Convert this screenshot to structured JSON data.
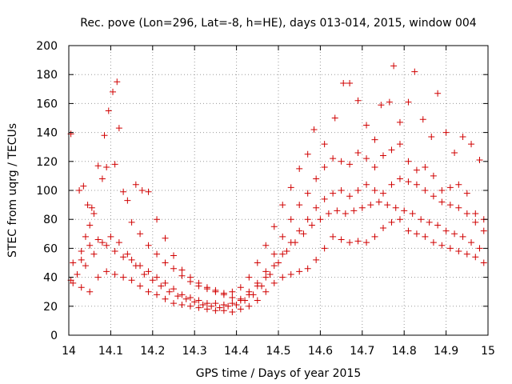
{
  "chart_data": {
    "type": "scatter",
    "title": "Rec. pove (Lon=296, Lat=-8, h=HE), days 013-014, 2015, window 004",
    "xlabel": "GPS time / Days of year 2015",
    "ylabel": "STEC from uqrg / TECUs",
    "xlim": [
      14.0,
      15.0
    ],
    "ylim": [
      0,
      200
    ],
    "xticks": [
      14.0,
      14.1,
      14.2,
      14.3,
      14.4,
      14.5,
      14.6,
      14.7,
      14.8,
      14.9,
      15.0
    ],
    "xtick_labels": [
      "14",
      "14.1",
      "14.2",
      "14.3",
      "14.4",
      "14.5",
      "14.6",
      "14.7",
      "14.8",
      "14.9",
      "15"
    ],
    "yticks": [
      0,
      20,
      40,
      60,
      80,
      100,
      120,
      140,
      160,
      180,
      200
    ],
    "marker": "+",
    "color": "#d00000",
    "grid": true,
    "series": [
      {
        "points": [
          [
            14.005,
            139
          ],
          [
            14.025,
            100
          ],
          [
            14.035,
            103
          ],
          [
            14.045,
            90
          ],
          [
            14.055,
            88
          ],
          [
            14.07,
            117
          ],
          [
            14.085,
            138
          ],
          [
            14.09,
            116
          ],
          [
            14.11,
            118
          ],
          [
            14.13,
            99
          ],
          [
            14.15,
            78
          ],
          [
            14.17,
            70
          ],
          [
            14.19,
            62
          ],
          [
            14.21,
            56
          ],
          [
            14.23,
            50
          ],
          [
            14.25,
            46
          ],
          [
            14.27,
            41
          ],
          [
            14.29,
            37
          ],
          [
            14.31,
            34
          ],
          [
            14.33,
            32
          ],
          [
            14.35,
            30
          ],
          [
            14.37,
            29
          ],
          [
            14.39,
            30
          ],
          [
            14.41,
            33
          ],
          [
            14.43,
            40
          ],
          [
            14.45,
            50
          ],
          [
            14.47,
            62
          ],
          [
            14.49,
            75
          ],
          [
            14.51,
            90
          ],
          [
            14.53,
            102
          ],
          [
            14.55,
            115
          ],
          [
            14.57,
            125
          ],
          [
            14.585,
            142
          ],
          [
            14.61,
            132
          ],
          [
            14.635,
            150
          ],
          [
            14.655,
            174
          ],
          [
            14.67,
            174
          ],
          [
            14.69,
            162
          ],
          [
            14.71,
            145
          ],
          [
            14.73,
            135
          ],
          [
            14.745,
            159
          ],
          [
            14.765,
            161
          ],
          [
            14.775,
            186
          ],
          [
            14.79,
            147
          ],
          [
            14.81,
            161
          ],
          [
            14.825,
            182
          ],
          [
            14.845,
            149
          ],
          [
            14.865,
            137
          ],
          [
            14.88,
            167
          ],
          [
            14.9,
            140
          ],
          [
            14.92,
            126
          ],
          [
            14.94,
            137
          ],
          [
            14.96,
            132
          ],
          [
            14.98,
            121
          ]
        ]
      },
      {
        "points": [
          [
            14.03,
            52
          ],
          [
            14.04,
            68
          ],
          [
            14.05,
            76
          ],
          [
            14.06,
            84
          ],
          [
            14.08,
            108
          ],
          [
            14.095,
            155
          ],
          [
            14.105,
            168
          ],
          [
            14.115,
            175
          ],
          [
            14.12,
            143
          ],
          [
            14.14,
            93
          ],
          [
            14.16,
            104
          ],
          [
            14.175,
            100
          ],
          [
            14.19,
            99
          ],
          [
            14.21,
            80
          ],
          [
            14.23,
            67
          ],
          [
            14.25,
            55
          ],
          [
            14.27,
            45
          ],
          [
            14.29,
            40
          ],
          [
            14.31,
            36
          ],
          [
            14.33,
            33
          ],
          [
            14.35,
            31
          ],
          [
            14.37,
            28
          ],
          [
            14.39,
            26
          ],
          [
            14.41,
            25
          ],
          [
            14.43,
            30
          ],
          [
            14.45,
            36
          ],
          [
            14.47,
            44
          ],
          [
            14.49,
            56
          ],
          [
            14.51,
            68
          ],
          [
            14.53,
            80
          ],
          [
            14.55,
            90
          ],
          [
            14.57,
            98
          ],
          [
            14.59,
            108
          ],
          [
            14.61,
            116
          ],
          [
            14.63,
            122
          ],
          [
            14.65,
            120
          ],
          [
            14.67,
            118
          ],
          [
            14.69,
            126
          ],
          [
            14.71,
            122
          ],
          [
            14.73,
            116
          ],
          [
            14.75,
            124
          ],
          [
            14.77,
            128
          ],
          [
            14.79,
            132
          ],
          [
            14.81,
            120
          ],
          [
            14.83,
            114
          ],
          [
            14.85,
            116
          ],
          [
            14.87,
            110
          ],
          [
            14.89,
            100
          ],
          [
            14.91,
            102
          ],
          [
            14.93,
            104
          ],
          [
            14.95,
            98
          ],
          [
            14.97,
            84
          ],
          [
            14.99,
            80
          ]
        ]
      },
      {
        "points": [
          [
            14.01,
            50
          ],
          [
            14.03,
            58
          ],
          [
            14.05,
            62
          ],
          [
            14.07,
            66
          ],
          [
            14.09,
            62
          ],
          [
            14.11,
            58
          ],
          [
            14.13,
            54
          ],
          [
            14.15,
            52
          ],
          [
            14.17,
            48
          ],
          [
            14.19,
            44
          ],
          [
            14.21,
            40
          ],
          [
            14.23,
            36
          ],
          [
            14.25,
            32
          ],
          [
            14.27,
            28
          ],
          [
            14.29,
            26
          ],
          [
            14.31,
            24
          ],
          [
            14.33,
            22
          ],
          [
            14.35,
            22
          ],
          [
            14.37,
            21
          ],
          [
            14.39,
            22
          ],
          [
            14.41,
            24
          ],
          [
            14.43,
            28
          ],
          [
            14.45,
            34
          ],
          [
            14.47,
            40
          ],
          [
            14.49,
            48
          ],
          [
            14.51,
            56
          ],
          [
            14.53,
            64
          ],
          [
            14.55,
            72
          ],
          [
            14.57,
            80
          ],
          [
            14.59,
            88
          ],
          [
            14.61,
            94
          ],
          [
            14.63,
            98
          ],
          [
            14.65,
            100
          ],
          [
            14.67,
            96
          ],
          [
            14.69,
            100
          ],
          [
            14.71,
            104
          ],
          [
            14.73,
            100
          ],
          [
            14.75,
            98
          ],
          [
            14.77,
            104
          ],
          [
            14.79,
            108
          ],
          [
            14.81,
            106
          ],
          [
            14.83,
            104
          ],
          [
            14.85,
            100
          ],
          [
            14.87,
            96
          ],
          [
            14.89,
            92
          ],
          [
            14.91,
            90
          ],
          [
            14.93,
            88
          ],
          [
            14.95,
            84
          ],
          [
            14.97,
            78
          ],
          [
            14.99,
            72
          ]
        ]
      },
      {
        "points": [
          [
            14.005,
            38
          ],
          [
            14.02,
            42
          ],
          [
            14.04,
            48
          ],
          [
            14.06,
            56
          ],
          [
            14.08,
            64
          ],
          [
            14.1,
            68
          ],
          [
            14.12,
            64
          ],
          [
            14.14,
            56
          ],
          [
            14.16,
            48
          ],
          [
            14.18,
            42
          ],
          [
            14.2,
            38
          ],
          [
            14.22,
            34
          ],
          [
            14.24,
            30
          ],
          [
            14.26,
            27
          ],
          [
            14.28,
            25
          ],
          [
            14.3,
            23
          ],
          [
            14.32,
            21
          ],
          [
            14.34,
            20
          ],
          [
            14.36,
            19
          ],
          [
            14.38,
            20
          ],
          [
            14.4,
            21
          ],
          [
            14.42,
            24
          ],
          [
            14.44,
            28
          ],
          [
            14.46,
            34
          ],
          [
            14.48,
            42
          ],
          [
            14.5,
            50
          ],
          [
            14.52,
            58
          ],
          [
            14.54,
            64
          ],
          [
            14.56,
            70
          ],
          [
            14.58,
            76
          ],
          [
            14.6,
            80
          ],
          [
            14.62,
            84
          ],
          [
            14.64,
            86
          ],
          [
            14.66,
            84
          ],
          [
            14.68,
            86
          ],
          [
            14.7,
            88
          ],
          [
            14.72,
            90
          ],
          [
            14.74,
            92
          ],
          [
            14.76,
            90
          ],
          [
            14.78,
            88
          ],
          [
            14.8,
            86
          ],
          [
            14.82,
            84
          ],
          [
            14.84,
            80
          ],
          [
            14.86,
            78
          ],
          [
            14.88,
            76
          ],
          [
            14.9,
            72
          ],
          [
            14.92,
            70
          ],
          [
            14.94,
            68
          ],
          [
            14.96,
            64
          ],
          [
            14.98,
            60
          ]
        ]
      },
      {
        "points": [
          [
            14.01,
            36
          ],
          [
            14.03,
            33
          ],
          [
            14.05,
            30
          ],
          [
            14.07,
            40
          ],
          [
            14.09,
            44
          ],
          [
            14.11,
            42
          ],
          [
            14.13,
            40
          ],
          [
            14.15,
            38
          ],
          [
            14.17,
            34
          ],
          [
            14.19,
            30
          ],
          [
            14.21,
            28
          ],
          [
            14.23,
            25
          ],
          [
            14.25,
            22
          ],
          [
            14.27,
            21
          ],
          [
            14.29,
            20
          ],
          [
            14.31,
            19
          ],
          [
            14.33,
            18
          ],
          [
            14.35,
            17
          ],
          [
            14.37,
            17
          ],
          [
            14.39,
            16
          ],
          [
            14.41,
            18
          ],
          [
            14.43,
            20
          ],
          [
            14.45,
            24
          ],
          [
            14.47,
            30
          ],
          [
            14.49,
            36
          ],
          [
            14.51,
            40
          ],
          [
            14.53,
            42
          ],
          [
            14.55,
            44
          ],
          [
            14.57,
            46
          ],
          [
            14.59,
            52
          ],
          [
            14.61,
            60
          ],
          [
            14.63,
            68
          ],
          [
            14.65,
            66
          ],
          [
            14.67,
            64
          ],
          [
            14.69,
            65
          ],
          [
            14.71,
            64
          ],
          [
            14.73,
            68
          ],
          [
            14.75,
            74
          ],
          [
            14.77,
            78
          ],
          [
            14.79,
            80
          ],
          [
            14.81,
            72
          ],
          [
            14.83,
            70
          ],
          [
            14.85,
            68
          ],
          [
            14.87,
            64
          ],
          [
            14.89,
            62
          ],
          [
            14.91,
            60
          ],
          [
            14.93,
            58
          ],
          [
            14.95,
            56
          ],
          [
            14.97,
            54
          ],
          [
            14.99,
            50
          ]
        ]
      }
    ]
  }
}
